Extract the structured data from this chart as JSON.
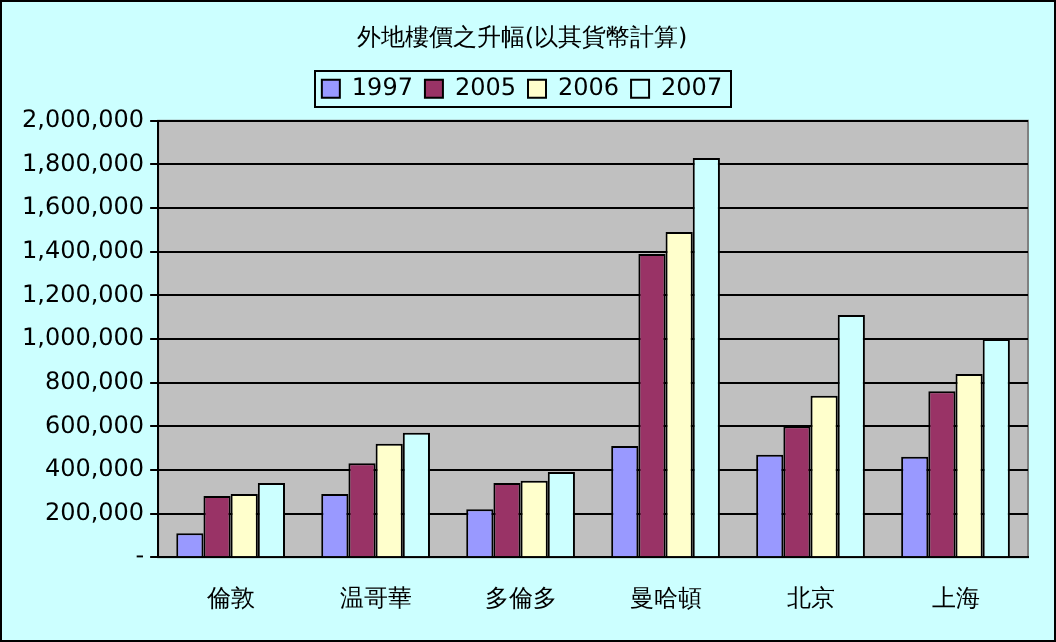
{
  "chart_data": {
    "type": "bar",
    "title": "外地樓價之升幅(以其貨幣計算)",
    "categories": [
      "倫敦",
      "温哥華",
      "多倫多",
      "曼哈頓",
      "北京",
      "上海"
    ],
    "series": [
      {
        "name": "1997",
        "color": "#9999ff",
        "values": [
          110000,
          290000,
          220000,
          510000,
          470000,
          460000
        ]
      },
      {
        "name": "2005",
        "color": "#993366",
        "values": [
          280000,
          430000,
          340000,
          1390000,
          600000,
          760000
        ]
      },
      {
        "name": "2006",
        "color": "#ffffcc",
        "values": [
          290000,
          520000,
          350000,
          1490000,
          740000,
          840000
        ]
      },
      {
        "name": "2007",
        "color": "#ccffff",
        "values": [
          340000,
          570000,
          390000,
          1830000,
          1110000,
          1000000
        ]
      }
    ],
    "ylim": [
      0,
      2000000
    ],
    "yticks": [
      {
        "value": 0,
        "label": "-"
      },
      {
        "value": 200000,
        "label": "200,000"
      },
      {
        "value": 400000,
        "label": "400,000"
      },
      {
        "value": 600000,
        "label": "600,000"
      },
      {
        "value": 800000,
        "label": "800,000"
      },
      {
        "value": 1000000,
        "label": "1,000,000"
      },
      {
        "value": 1200000,
        "label": "1,200,000"
      },
      {
        "value": 1400000,
        "label": "1,400,000"
      },
      {
        "value": 1600000,
        "label": "1,600,000"
      },
      {
        "value": 1800000,
        "label": "1,800,000"
      },
      {
        "value": 2000000,
        "label": "2,000,000"
      }
    ],
    "grid": "y",
    "legend": "top"
  }
}
